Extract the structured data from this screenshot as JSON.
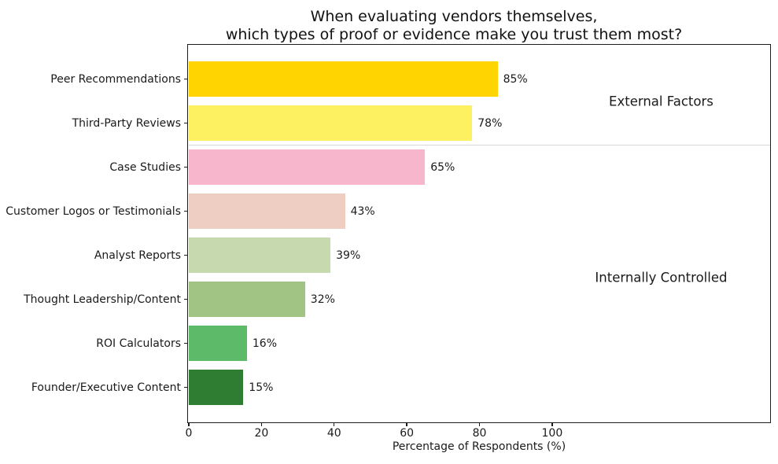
{
  "chart_data": {
    "type": "bar",
    "orientation": "horizontal",
    "title": "When evaluating vendors themselves,\nwhich types of proof or evidence make you trust them most?",
    "xlabel": "Percentage of Respondents (%)",
    "xlim": [
      0,
      160
    ],
    "xticks": [
      0,
      20,
      40,
      60,
      80,
      100
    ],
    "grid": false,
    "categories": [
      "Peer Recommendations",
      "Third-Party Reviews",
      "Case Studies",
      "Customer Logos or Testimonials",
      "Analyst Reports",
      "Thought Leadership/Content",
      "ROI Calculators",
      "Founder/Executive Content"
    ],
    "values": [
      85,
      78,
      65,
      43,
      39,
      32,
      16,
      15
    ],
    "value_labels": [
      "85%",
      "78%",
      "65%",
      "43%",
      "39%",
      "32%",
      "16%",
      "15%"
    ],
    "bar_colors": [
      "#FFD400",
      "#FEF161",
      "#F7B6CB",
      "#EECDC3",
      "#C7DAAF",
      "#A1C383",
      "#5CBA68",
      "#2E7D32"
    ],
    "group_annotations": [
      {
        "label": "External Factors",
        "x_value": 130,
        "between_rows": [
          0,
          1
        ]
      },
      {
        "label": "Internally Controlled",
        "x_value": 130,
        "between_rows": [
          2,
          7
        ]
      }
    ],
    "divider_after_row": 1,
    "divider_color": "#d7d7d7",
    "text_color": "#1a1a1a"
  }
}
